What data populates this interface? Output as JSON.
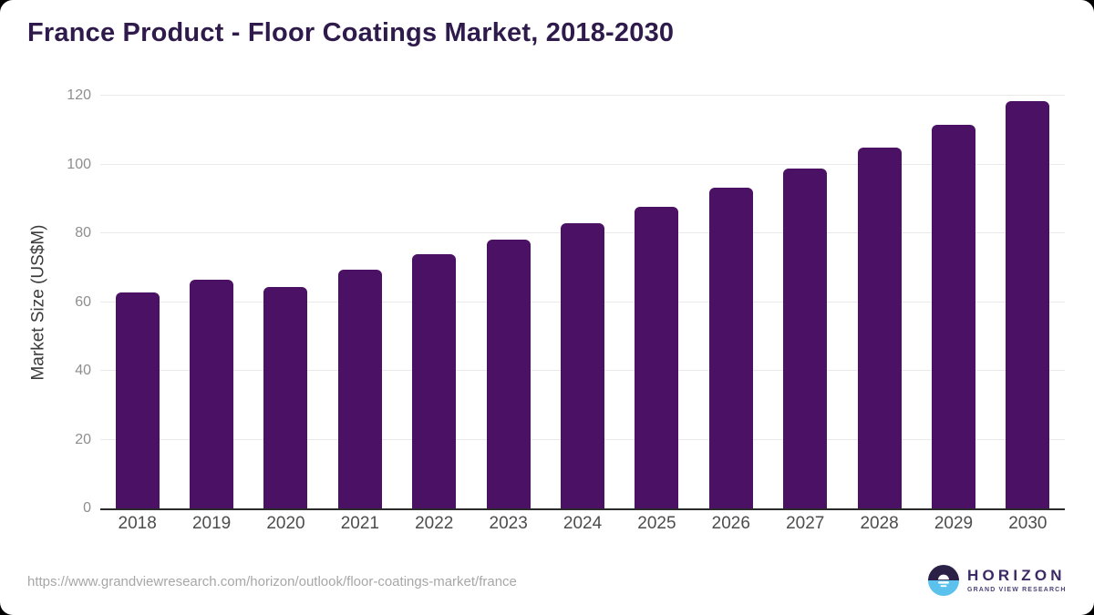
{
  "card": {
    "page_background": "#000000",
    "background": "#ffffff"
  },
  "header": {
    "title": "France Product - Floor Coatings Market, 2018-2030",
    "title_color": "#2e1a4b"
  },
  "chart_data": {
    "type": "bar",
    "title": "France Product - Floor Coatings Market, 2018-2030",
    "categories": [
      "2018",
      "2019",
      "2020",
      "2021",
      "2022",
      "2023",
      "2024",
      "2025",
      "2026",
      "2027",
      "2028",
      "2029",
      "2030"
    ],
    "values": [
      62.9,
      66.5,
      64.3,
      69.5,
      73.9,
      78.2,
      83.0,
      87.8,
      93.3,
      98.7,
      104.8,
      111.4,
      118.5
    ],
    "xlabel": "",
    "ylabel": "Market Size (US$M)",
    "ylim": [
      0,
      120
    ],
    "yticks": [
      0,
      20,
      40,
      60,
      80,
      100,
      120
    ],
    "grid": true,
    "legend_position": "none",
    "bar_color": "#4a1164",
    "gridline_color": "#e9e9e9",
    "axis_line_color": "#2b2b2b",
    "ytick_color": "#8e8e8e",
    "xlabel_color": "#4d4d4d",
    "ylabel_color": "#3b3b3b"
  },
  "footer": {
    "source_url": "https://www.grandviewresearch.com/horizon/outlook/floor-coatings-market/france",
    "source_url_color": "#a7a7a7",
    "logo": {
      "brand": "HORIZON",
      "tagline": "GRAND VIEW RESEARCH",
      "brand_color": "#3c2a66",
      "tagline_color": "#4e4378",
      "icon_top_color": "#2b2147",
      "icon_bottom_color": "#5bc2ed",
      "icon_sun_color": "#ffffff"
    }
  }
}
